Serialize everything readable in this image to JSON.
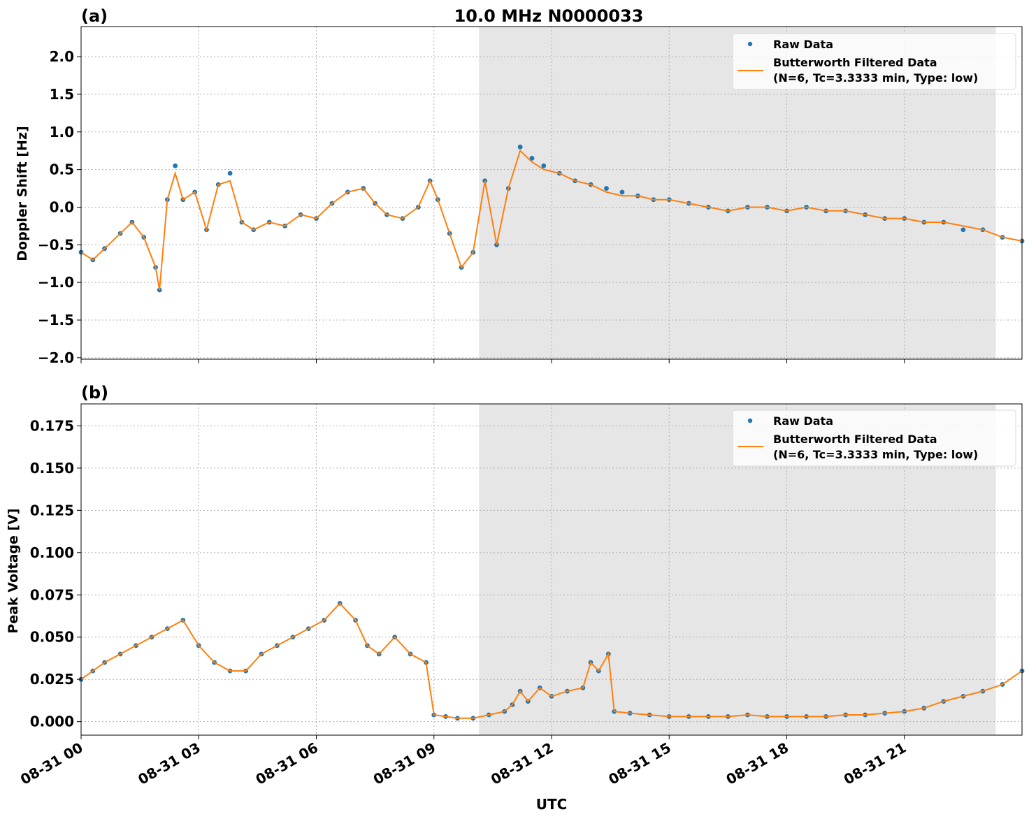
{
  "title": "10.0 MHz N0000033",
  "xlabel": "UTC",
  "colors": {
    "raw": "#1f77b4",
    "filtered": "#ff7f0e",
    "shade": "#e6e6e6",
    "grid": "#b0b0b0"
  },
  "x_ticks": [
    "08-31 00",
    "08-31 03",
    "08-31 06",
    "08-31 09",
    "08-31 12",
    "08-31 15",
    "08-31 18",
    "08-31 21"
  ],
  "chart_data": [
    {
      "type": "scatter",
      "panel_label": "(a)",
      "ylabel": "Doppler Shift [Hz]",
      "x_range_hours": [
        0,
        24
      ],
      "ylim": [
        -2.02,
        2.4
      ],
      "yticks": [
        -2.0,
        -1.5,
        -1.0,
        -0.5,
        0.0,
        0.5,
        1.0,
        1.5,
        2.0
      ],
      "ytick_labels": [
        "−2.0",
        "−1.5",
        "−1.0",
        "−0.5",
        "0.0",
        "0.5",
        "1.0",
        "1.5",
        "2.0"
      ],
      "shaded_region_hours": [
        10.15,
        23.33
      ],
      "grid": true,
      "legend_placement": "top-right",
      "legend": [
        "Raw Data",
        "Butterworth Filtered Data",
        "(N=6, Tc=3.3333 min, Type: low)"
      ],
      "series": [
        {
          "name": "Raw Data",
          "style": "points",
          "x": [
            0,
            0.3,
            0.6,
            1.0,
            1.3,
            1.6,
            1.9,
            2.0,
            2.2,
            2.4,
            2.6,
            2.9,
            3.2,
            3.5,
            3.8,
            4.1,
            4.4,
            4.8,
            5.2,
            5.6,
            6.0,
            6.4,
            6.8,
            7.2,
            7.5,
            7.8,
            8.2,
            8.6,
            8.9,
            9.1,
            9.4,
            9.7,
            10.0,
            10.3,
            10.6,
            10.9,
            11.2,
            11.5,
            11.8,
            12.2,
            12.6,
            13.0,
            13.4,
            13.8,
            14.2,
            14.6,
            15.0,
            15.5,
            16.0,
            16.5,
            17.0,
            17.5,
            18.0,
            18.5,
            19.0,
            19.5,
            20.0,
            20.5,
            21.0,
            21.5,
            22.0,
            22.5,
            23.0,
            23.5,
            24.0
          ],
          "y": [
            -0.6,
            -0.7,
            -0.55,
            -0.35,
            -0.2,
            -0.4,
            -0.8,
            -1.1,
            0.1,
            0.55,
            0.1,
            0.2,
            -0.3,
            0.3,
            0.45,
            -0.2,
            -0.3,
            -0.2,
            -0.25,
            -0.1,
            -0.15,
            0.05,
            0.2,
            0.25,
            0.05,
            -0.1,
            -0.15,
            0.0,
            0.35,
            0.1,
            -0.35,
            -0.8,
            -0.6,
            0.35,
            -0.5,
            0.25,
            0.8,
            0.65,
            0.55,
            0.45,
            0.35,
            0.3,
            0.25,
            0.2,
            0.15,
            0.1,
            0.1,
            0.05,
            0.0,
            -0.05,
            0.0,
            0.0,
            -0.05,
            0.0,
            -0.05,
            -0.05,
            -0.1,
            -0.15,
            -0.15,
            -0.2,
            -0.2,
            -0.3,
            -0.3,
            -0.4,
            -0.45
          ]
        },
        {
          "name": "Butterworth Filtered Data",
          "style": "line",
          "x": [
            0,
            0.3,
            0.6,
            1.0,
            1.3,
            1.6,
            1.9,
            2.0,
            2.2,
            2.4,
            2.6,
            2.9,
            3.2,
            3.5,
            3.8,
            4.1,
            4.4,
            4.8,
            5.2,
            5.6,
            6.0,
            6.4,
            6.8,
            7.2,
            7.5,
            7.8,
            8.2,
            8.6,
            8.9,
            9.1,
            9.4,
            9.7,
            10.0,
            10.3,
            10.6,
            10.9,
            11.2,
            11.5,
            11.8,
            12.2,
            12.6,
            13.0,
            13.4,
            13.8,
            14.2,
            14.6,
            15.0,
            15.5,
            16.0,
            16.5,
            17.0,
            17.5,
            18.0,
            18.5,
            19.0,
            19.5,
            20.0,
            20.5,
            21.0,
            21.5,
            22.0,
            22.5,
            23.0,
            23.5,
            24.0
          ],
          "y": [
            -0.6,
            -0.7,
            -0.55,
            -0.35,
            -0.2,
            -0.4,
            -0.8,
            -1.1,
            0.1,
            0.45,
            0.1,
            0.2,
            -0.3,
            0.3,
            0.35,
            -0.2,
            -0.3,
            -0.2,
            -0.25,
            -0.1,
            -0.15,
            0.05,
            0.2,
            0.25,
            0.05,
            -0.1,
            -0.15,
            0.0,
            0.35,
            0.1,
            -0.35,
            -0.8,
            -0.6,
            0.35,
            -0.5,
            0.25,
            0.75,
            0.6,
            0.5,
            0.45,
            0.35,
            0.3,
            0.2,
            0.15,
            0.15,
            0.1,
            0.1,
            0.05,
            0.0,
            -0.05,
            0.0,
            0.0,
            -0.05,
            0.0,
            -0.05,
            -0.05,
            -0.1,
            -0.15,
            -0.15,
            -0.2,
            -0.2,
            -0.25,
            -0.3,
            -0.4,
            -0.45
          ]
        }
      ]
    },
    {
      "type": "scatter",
      "panel_label": "(b)",
      "ylabel": "Peak Voltage [V]",
      "x_range_hours": [
        0,
        24
      ],
      "ylim": [
        -0.008,
        0.188
      ],
      "yticks": [
        0.0,
        0.025,
        0.05,
        0.075,
        0.1,
        0.125,
        0.15,
        0.175
      ],
      "ytick_labels": [
        "0.000",
        "0.025",
        "0.050",
        "0.075",
        "0.100",
        "0.125",
        "0.150",
        "0.175"
      ],
      "shaded_region_hours": [
        10.15,
        23.33
      ],
      "grid": true,
      "legend_placement": "top-right",
      "legend": [
        "Raw Data",
        "Butterworth Filtered Data",
        "(N=6, Tc=3.3333 min, Type: low)"
      ],
      "series": [
        {
          "name": "Raw Data",
          "style": "points",
          "x": [
            0,
            0.3,
            0.6,
            1.0,
            1.4,
            1.8,
            2.2,
            2.6,
            3.0,
            3.4,
            3.8,
            4.2,
            4.6,
            5.0,
            5.4,
            5.8,
            6.2,
            6.6,
            7.0,
            7.3,
            7.6,
            8.0,
            8.4,
            8.8,
            9.0,
            9.3,
            9.6,
            10.0,
            10.4,
            10.8,
            11.0,
            11.2,
            11.4,
            11.7,
            12.0,
            12.4,
            12.8,
            13.0,
            13.2,
            13.45,
            13.6,
            14.0,
            14.5,
            15.0,
            15.5,
            16.0,
            16.5,
            17.0,
            17.5,
            18.0,
            18.5,
            19.0,
            19.5,
            20.0,
            20.5,
            21.0,
            21.5,
            22.0,
            22.5,
            23.0,
            23.5,
            24.0
          ],
          "y": [
            0.025,
            0.03,
            0.035,
            0.04,
            0.045,
            0.05,
            0.055,
            0.06,
            0.045,
            0.035,
            0.03,
            0.03,
            0.04,
            0.045,
            0.05,
            0.055,
            0.06,
            0.07,
            0.06,
            0.045,
            0.04,
            0.05,
            0.04,
            0.035,
            0.004,
            0.003,
            0.002,
            0.002,
            0.004,
            0.006,
            0.01,
            0.018,
            0.012,
            0.02,
            0.015,
            0.018,
            0.02,
            0.035,
            0.03,
            0.04,
            0.006,
            0.005,
            0.004,
            0.003,
            0.003,
            0.003,
            0.003,
            0.004,
            0.003,
            0.003,
            0.003,
            0.003,
            0.004,
            0.004,
            0.005,
            0.006,
            0.008,
            0.012,
            0.015,
            0.018,
            0.022,
            0.03
          ]
        },
        {
          "name": "Butterworth Filtered Data",
          "style": "line",
          "x": [
            0,
            0.3,
            0.6,
            1.0,
            1.4,
            1.8,
            2.2,
            2.6,
            3.0,
            3.4,
            3.8,
            4.2,
            4.6,
            5.0,
            5.4,
            5.8,
            6.2,
            6.6,
            7.0,
            7.3,
            7.6,
            8.0,
            8.4,
            8.8,
            9.0,
            9.3,
            9.6,
            10.0,
            10.4,
            10.8,
            11.0,
            11.2,
            11.4,
            11.7,
            12.0,
            12.4,
            12.8,
            13.0,
            13.2,
            13.45,
            13.6,
            14.0,
            14.5,
            15.0,
            15.5,
            16.0,
            16.5,
            17.0,
            17.5,
            18.0,
            18.5,
            19.0,
            19.5,
            20.0,
            20.5,
            21.0,
            21.5,
            22.0,
            22.5,
            23.0,
            23.5,
            24.0
          ],
          "y": [
            0.025,
            0.03,
            0.035,
            0.04,
            0.045,
            0.05,
            0.055,
            0.06,
            0.045,
            0.035,
            0.03,
            0.03,
            0.04,
            0.045,
            0.05,
            0.055,
            0.06,
            0.07,
            0.06,
            0.045,
            0.04,
            0.05,
            0.04,
            0.035,
            0.004,
            0.003,
            0.002,
            0.002,
            0.004,
            0.006,
            0.01,
            0.018,
            0.012,
            0.02,
            0.015,
            0.018,
            0.02,
            0.035,
            0.03,
            0.04,
            0.006,
            0.005,
            0.004,
            0.003,
            0.003,
            0.003,
            0.003,
            0.004,
            0.003,
            0.003,
            0.003,
            0.003,
            0.004,
            0.004,
            0.005,
            0.006,
            0.008,
            0.012,
            0.015,
            0.018,
            0.022,
            0.03
          ]
        }
      ]
    }
  ]
}
